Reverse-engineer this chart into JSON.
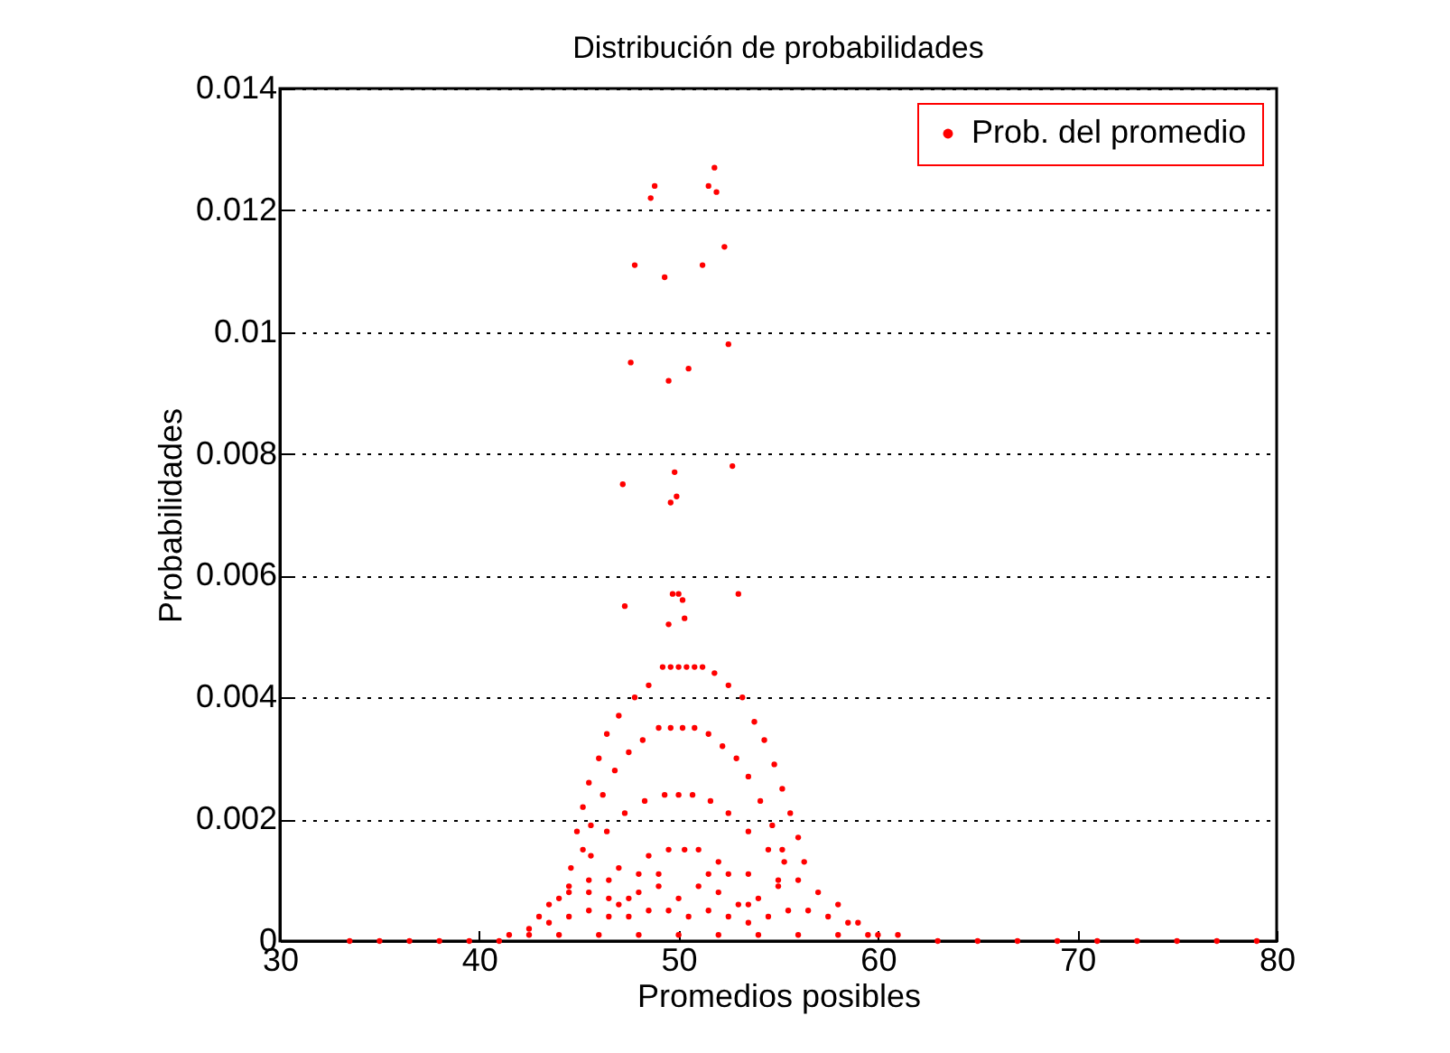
{
  "chart_data": {
    "type": "scatter",
    "title": "Distribución de probabilidades",
    "xlabel": "Promedios posibles",
    "ylabel": "Probabilidades",
    "xlim": [
      30,
      80
    ],
    "xticks": [
      30,
      40,
      50,
      60,
      70,
      80
    ],
    "ylim": [
      0,
      0.014
    ],
    "yticks": [
      0,
      0.002,
      0.004,
      0.006,
      0.008,
      0.01,
      0.012,
      0.014
    ],
    "grid": "y",
    "legend": "top right",
    "marker": "circle",
    "series": [
      {
        "name": "Prob. del promedio",
        "color": "#ff0000",
        "x": [
          51.8,
          51.5,
          51.9,
          48.8,
          48.6,
          47.8,
          49.3,
          51.2,
          52.3,
          47.6,
          49.5,
          50.5,
          52.5,
          47.2,
          49.8,
          49.6,
          49.9,
          52.7,
          47.3,
          49.7,
          50.0,
          50.2,
          53.0,
          49.5,
          50.3,
          49.2,
          49.6,
          50,
          50.4,
          50.8,
          51.2,
          48.5,
          47.8,
          47,
          46.4,
          46,
          45.5,
          45.2,
          44.9,
          44.6,
          51.8,
          52.5,
          53.2,
          53.8,
          54.3,
          54.8,
          55.2,
          55.6,
          56,
          56.3,
          49,
          49.6,
          50.2,
          50.8,
          48.2,
          47.5,
          46.8,
          46.2,
          45.6,
          45.2,
          51.5,
          52.2,
          52.9,
          53.5,
          54.1,
          54.7,
          55.2,
          49.3,
          50,
          50.7,
          48.3,
          47.3,
          46.4,
          45.6,
          51.6,
          52.5,
          53.5,
          54.5,
          55.3,
          49.5,
          50.3,
          51,
          48.5,
          47,
          45.5,
          52,
          53.5,
          55,
          48,
          49,
          51.5,
          52.5,
          44.5,
          46.5,
          33.5,
          35,
          36.5,
          38,
          39.5,
          41,
          41.5,
          42.5,
          43,
          43.5,
          44,
          44.5,
          45.5,
          46.5,
          47,
          47.5,
          48,
          49,
          50,
          51,
          52,
          53,
          53.5,
          54,
          55,
          56,
          57,
          58,
          59,
          60,
          61,
          63,
          65,
          67,
          69,
          71,
          73,
          75,
          77,
          79,
          43.5,
          44.5,
          45.5,
          46.5,
          47.5,
          48.5,
          49.5,
          50.5,
          51.5,
          52.5,
          53.5,
          54.5,
          55.5,
          56.5,
          57.5,
          58.5,
          42.5,
          44,
          46,
          48,
          50,
          52,
          54,
          56,
          58,
          59.5
        ],
        "values": [
          0.0127,
          0.0124,
          0.0123,
          0.0124,
          0.0122,
          0.0111,
          0.0109,
          0.0111,
          0.0114,
          0.0095,
          0.0092,
          0.0094,
          0.0098,
          0.0075,
          0.0077,
          0.0072,
          0.0073,
          0.0078,
          0.0055,
          0.0057,
          0.0057,
          0.0056,
          0.0057,
          0.0052,
          0.0053,
          0.0045,
          0.0045,
          0.0045,
          0.0045,
          0.0045,
          0.0045,
          0.0042,
          0.004,
          0.0037,
          0.0034,
          0.003,
          0.0026,
          0.0022,
          0.0018,
          0.0012,
          0.0044,
          0.0042,
          0.004,
          0.0036,
          0.0033,
          0.0029,
          0.0025,
          0.0021,
          0.0017,
          0.0013,
          0.0035,
          0.0035,
          0.0035,
          0.0035,
          0.0033,
          0.0031,
          0.0028,
          0.0024,
          0.0019,
          0.0015,
          0.0034,
          0.0032,
          0.003,
          0.0027,
          0.0023,
          0.0019,
          0.0015,
          0.0024,
          0.0024,
          0.0024,
          0.0023,
          0.0021,
          0.0018,
          0.0014,
          0.0023,
          0.0021,
          0.0018,
          0.0015,
          0.0013,
          0.0015,
          0.0015,
          0.0015,
          0.0014,
          0.0012,
          0.001,
          0.0013,
          0.0011,
          0.001,
          0.0011,
          0.0011,
          0.0011,
          0.0011,
          0.0009,
          0.001,
          0,
          0,
          0,
          0,
          0,
          0,
          0.0001,
          0.0002,
          0.0004,
          0.0006,
          0.0007,
          0.0008,
          0.0008,
          0.0007,
          0.0006,
          0.0007,
          0.0008,
          0.0009,
          0.0007,
          0.0009,
          0.0008,
          0.0006,
          0.0006,
          0.0007,
          0.0009,
          0.001,
          0.0008,
          0.0006,
          0.0003,
          0.0001,
          0.0001,
          0,
          0,
          0,
          0,
          0,
          0,
          0,
          0,
          0,
          0.0003,
          0.0004,
          0.0005,
          0.0004,
          0.0004,
          0.0005,
          0.0005,
          0.0004,
          0.0005,
          0.0004,
          0.0003,
          0.0004,
          0.0005,
          0.0005,
          0.0004,
          0.0003,
          0.0001,
          0.0001,
          0.0001,
          0.0001,
          0.0001,
          0.0001,
          0.0001,
          0.0001,
          0.0001,
          0.0001
        ]
      }
    ]
  }
}
